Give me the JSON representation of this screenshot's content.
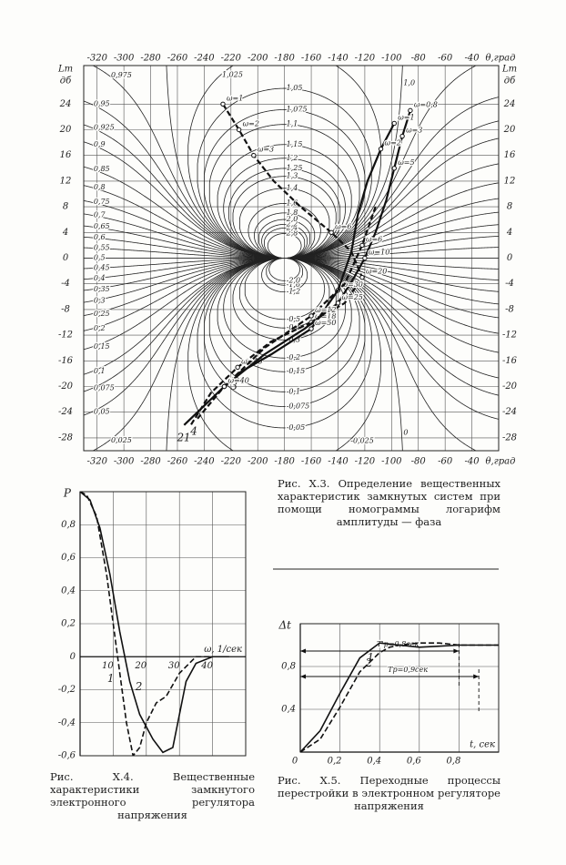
{
  "chart_data": [
    {
      "type": "nomogram",
      "caption": "Рис. X.3. Определение вещественных характеристик замкнутых систем при помощи номограммы логарифм амплитуды — фаза",
      "xlabel": "θ,град",
      "ylabel": "Lm",
      "yunit": "дб",
      "xlim": [
        -330,
        -20
      ],
      "ylim": [
        -30,
        30
      ],
      "xticks": [
        -320,
        -300,
        -280,
        -260,
        -240,
        -220,
        -200,
        -180,
        -160,
        -140,
        -120,
        -100,
        -80,
        -60,
        -40
      ],
      "yticks": [
        24,
        20,
        16,
        12,
        8,
        4,
        0,
        -4,
        -8,
        -12,
        -16,
        -20,
        -24,
        -28
      ],
      "grid": true,
      "contours": [
        {
          "value": 2.8,
          "label": "2,8"
        },
        {
          "value": 2.4,
          "label": "2,4"
        },
        {
          "value": 2.2,
          "label": "2,2"
        },
        {
          "value": 2.0,
          "label": "2,0"
        },
        {
          "value": 1.8,
          "label": "1,8"
        },
        {
          "value": 1.6,
          "label": "1,6"
        },
        {
          "value": 1.4,
          "label": "1,4"
        },
        {
          "value": 1.3,
          "label": "1,3"
        },
        {
          "value": 1.25,
          "label": "1,25"
        },
        {
          "value": 1.2,
          "label": "1,2"
        },
        {
          "value": 1.15,
          "label": "1,15"
        },
        {
          "value": 1.1,
          "label": "1,1"
        },
        {
          "value": 1.075,
          "label": "1,075"
        },
        {
          "value": 1.05,
          "label": "1,05"
        },
        {
          "value": 1.025,
          "label": "1,025"
        },
        {
          "value": 1.0,
          "label": "1,0"
        },
        {
          "value": 0.975,
          "label": "0,975"
        },
        {
          "value": 0.95,
          "label": "0,95"
        },
        {
          "value": 0.925,
          "label": "0,925"
        },
        {
          "value": 0.9,
          "label": "0,9"
        },
        {
          "value": 0.85,
          "label": "0,85"
        },
        {
          "value": 0.8,
          "label": "0,8"
        },
        {
          "value": 0.75,
          "label": "0,75"
        },
        {
          "value": 0.7,
          "label": "0,7"
        },
        {
          "value": 0.65,
          "label": "0,65"
        },
        {
          "value": 0.6,
          "label": "0,6"
        },
        {
          "value": 0.55,
          "label": "0,55"
        },
        {
          "value": 0.5,
          "label": "0,5"
        },
        {
          "value": 0.45,
          "label": "0,45"
        },
        {
          "value": 0.4,
          "label": "0,4"
        },
        {
          "value": 0.35,
          "label": "0,35"
        },
        {
          "value": 0.3,
          "label": "0,3"
        },
        {
          "value": 0.25,
          "label": "0,25"
        },
        {
          "value": 0.2,
          "label": "0,2"
        },
        {
          "value": 0.15,
          "label": "0,15"
        },
        {
          "value": 0.1,
          "label": "0,1"
        },
        {
          "value": 0.075,
          "label": "0,075"
        },
        {
          "value": 0.05,
          "label": "0,05"
        },
        {
          "value": 0.025,
          "label": "0,025"
        },
        0,
        {
          "value": -0.025,
          "label": "-0,025"
        },
        {
          "value": -0.05,
          "label": "-0,05"
        },
        {
          "value": -0.075,
          "label": "-0,075"
        },
        {
          "value": -0.1,
          "label": "-0,1"
        },
        {
          "value": -0.15,
          "label": "-0,15"
        },
        {
          "value": -0.2,
          "label": "-0,2"
        },
        {
          "value": -0.3,
          "label": "-0,3"
        },
        {
          "value": -0.4,
          "label": "-0,4"
        },
        {
          "value": -0.5,
          "label": "-0,5"
        },
        {
          "value": -1.2,
          "label": "-1,2"
        },
        {
          "value": -1.6,
          "label": "-1,6"
        },
        {
          "value": -2.0,
          "label": "-2,0"
        }
      ],
      "series": [
        {
          "name": "1",
          "style": "dashed",
          "x": [
            -226,
            -214,
            -203,
            -188,
            -168,
            -145,
            -130,
            -122,
            -135,
            -160,
            -190,
            -215,
            -235,
            -250
          ],
          "values": [
            24,
            20,
            16,
            12,
            8,
            4,
            1,
            -3,
            -7,
            -10,
            -13,
            -17,
            -21,
            -26
          ],
          "point_labels": [
            "ω=1",
            "ω=2",
            "ω=3",
            null,
            null,
            "ω=6",
            null,
            "ω=20",
            null,
            "ω=18",
            null,
            "ω=45",
            null,
            null
          ]
        },
        {
          "name": "2",
          "style": "solid",
          "x": [
            -86,
            -92,
            -98,
            -104,
            -112,
            -120,
            -128,
            -140,
            -165,
            -195,
            -225,
            -255
          ],
          "values": [
            23,
            19,
            14,
            9,
            4,
            0,
            -3,
            -7,
            -11,
            -15,
            -20,
            -26
          ],
          "point_labels": [
            "ω=0,8",
            "ω=3",
            "ω=5",
            null,
            null,
            "ω=10",
            null,
            "ω=25",
            null,
            null,
            "ω=70",
            null
          ]
        },
        {
          "name": "3",
          "style": "solid",
          "x": [
            -98,
            -108,
            -118,
            -125,
            -130,
            -140,
            -160,
            -190,
            -215
          ],
          "values": [
            21,
            17,
            12,
            7,
            1,
            -5,
            -11,
            -15,
            -18
          ],
          "point_labels": [
            "ω=1",
            "ω=2",
            null,
            null,
            null,
            "ω=30",
            "ω=50",
            null,
            null
          ]
        },
        {
          "name": "4",
          "style": "dashed",
          "x": [
            -112,
            -122,
            -135,
            -160,
            -195,
            -225,
            -245
          ],
          "values": [
            8,
            2,
            -4,
            -9,
            -14,
            -20,
            -25
          ],
          "point_labels": [
            null,
            "ω=6",
            null,
            "ω=12",
            null,
            "ω=40",
            null
          ]
        }
      ]
    },
    {
      "type": "line",
      "caption": "Рис. X.4. Вещественные характеристики замкнутого электронного регулятора напряжения",
      "xlabel": "ω, 1/сек",
      "ylabel": "P",
      "xlim": [
        0,
        50
      ],
      "ylim": [
        -0.6,
        1.0
      ],
      "xticks": [
        10,
        20,
        30,
        40
      ],
      "yticks": [
        {
          "value": 0.8,
          "label": "0,8"
        },
        {
          "value": 0.6,
          "label": "0,6"
        },
        {
          "value": 0.4,
          "label": "0,4"
        },
        {
          "value": 0.2,
          "label": "0,2"
        },
        0,
        {
          "value": -0.2,
          "label": "-0,2"
        },
        {
          "value": -0.4,
          "label": "-0,4"
        },
        {
          "value": -0.6,
          "label": "-0,6"
        }
      ],
      "grid": true,
      "series": [
        {
          "name": "1",
          "style": "dashed",
          "x": [
            0,
            2,
            5,
            8,
            10,
            12,
            14,
            16,
            18,
            20,
            23,
            26,
            30,
            35,
            40
          ],
          "values": [
            1.0,
            0.98,
            0.85,
            0.5,
            0.2,
            -0.1,
            -0.4,
            -0.6,
            -0.55,
            -0.4,
            -0.28,
            -0.24,
            -0.1,
            0,
            0
          ]
        },
        {
          "name": "2",
          "style": "solid",
          "x": [
            0,
            3,
            6,
            9,
            12,
            15,
            18,
            22,
            25,
            28,
            30,
            32,
            35,
            40,
            45
          ],
          "values": [
            1.0,
            0.95,
            0.78,
            0.5,
            0.15,
            -0.15,
            -0.35,
            -0.5,
            -0.58,
            -0.55,
            -0.35,
            -0.15,
            -0.04,
            0,
            0
          ]
        }
      ]
    },
    {
      "type": "line",
      "caption": "Рис. X.5. Переходные процессы перестройки в электронном регуляторе напряжения",
      "xlabel": "t, сек",
      "ylabel": "Δt",
      "xlim": [
        0,
        1.0
      ],
      "ylim": [
        0,
        1.2
      ],
      "xticks": [
        0,
        {
          "value": 0.2,
          "label": "0,2"
        },
        {
          "value": 0.4,
          "label": "0,4"
        },
        {
          "value": 0.6,
          "label": "0,6"
        },
        {
          "value": 0.8,
          "label": "0,8"
        }
      ],
      "yticks": [
        {
          "value": 0.4,
          "label": "0,4"
        },
        {
          "value": 0.8,
          "label": "0,8"
        }
      ],
      "grid": true,
      "dimensions": [
        {
          "value": 0.8,
          "label": "T'р=0,8сек"
        },
        {
          "value": 0.9,
          "label": "Tр=0,9сек"
        }
      ],
      "series": [
        {
          "name": "1",
          "style": "dashed",
          "x": [
            0,
            0.1,
            0.2,
            0.3,
            0.4,
            0.45,
            0.5,
            0.6,
            0.7,
            0.8,
            0.9,
            1.0
          ],
          "values": [
            0,
            0.12,
            0.42,
            0.75,
            0.93,
            0.98,
            1.0,
            1.02,
            1.02,
            1.0,
            1.0,
            1.0
          ]
        },
        {
          "name": "2",
          "style": "solid",
          "x": [
            0,
            0.1,
            0.2,
            0.3,
            0.4,
            0.5,
            0.6,
            0.7,
            0.8,
            1.0
          ],
          "values": [
            0,
            0.2,
            0.55,
            0.88,
            1.02,
            1.0,
            0.98,
            0.99,
            1.0,
            1.0
          ]
        }
      ]
    }
  ]
}
